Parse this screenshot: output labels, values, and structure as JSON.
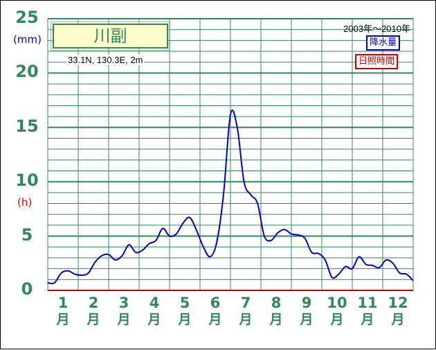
{
  "chart_data": {
    "type": "line",
    "title": "川副",
    "location": "33.1N, 130.3E, 2m",
    "period": "2003年～2010年",
    "y_ticks": [
      "0",
      "5",
      "10",
      "15",
      "20",
      "25"
    ],
    "ylim": [
      0,
      25
    ],
    "units": {
      "precipitation": "(mm)",
      "sunshine": "(h)"
    },
    "legend": {
      "precipitation": "降水量",
      "sunshine": "日照時間"
    },
    "x_labels": [
      {
        "num": "1",
        "unit": "月"
      },
      {
        "num": "2",
        "unit": "月"
      },
      {
        "num": "3",
        "unit": "月"
      },
      {
        "num": "4",
        "unit": "月"
      },
      {
        "num": "5",
        "unit": "月"
      },
      {
        "num": "6",
        "unit": "月"
      },
      {
        "num": "7",
        "unit": "月"
      },
      {
        "num": "8",
        "unit": "月"
      },
      {
        "num": "9",
        "unit": "月"
      },
      {
        "num": "10",
        "unit": "月"
      },
      {
        "num": "11",
        "unit": "月"
      },
      {
        "num": "12",
        "unit": "月"
      }
    ],
    "series": [
      {
        "name": "降水量",
        "color": "#0000cc",
        "values": [
          0.7,
          0.7,
          1.6,
          1.8,
          1.5,
          1.4,
          1.6,
          2.6,
          3.2,
          3.3,
          2.8,
          3.2,
          4.2,
          3.5,
          3.7,
          4.3,
          4.6,
          5.7,
          5.0,
          5.2,
          6.2,
          6.7,
          5.5,
          4.0,
          3.1,
          4.5,
          9.0,
          16.2,
          15.0,
          10.0,
          8.8,
          8.0,
          5.0,
          4.6,
          5.3,
          5.6,
          5.2,
          5.1,
          4.8,
          3.5,
          3.4,
          2.8,
          1.2,
          1.5,
          2.2,
          2.0,
          3.1,
          2.4,
          2.3,
          2.1,
          2.8,
          2.5,
          1.6,
          1.5,
          0.9
        ]
      },
      {
        "name": "日照時間",
        "color": "#cc0000",
        "values": []
      }
    ],
    "grid": true
  }
}
